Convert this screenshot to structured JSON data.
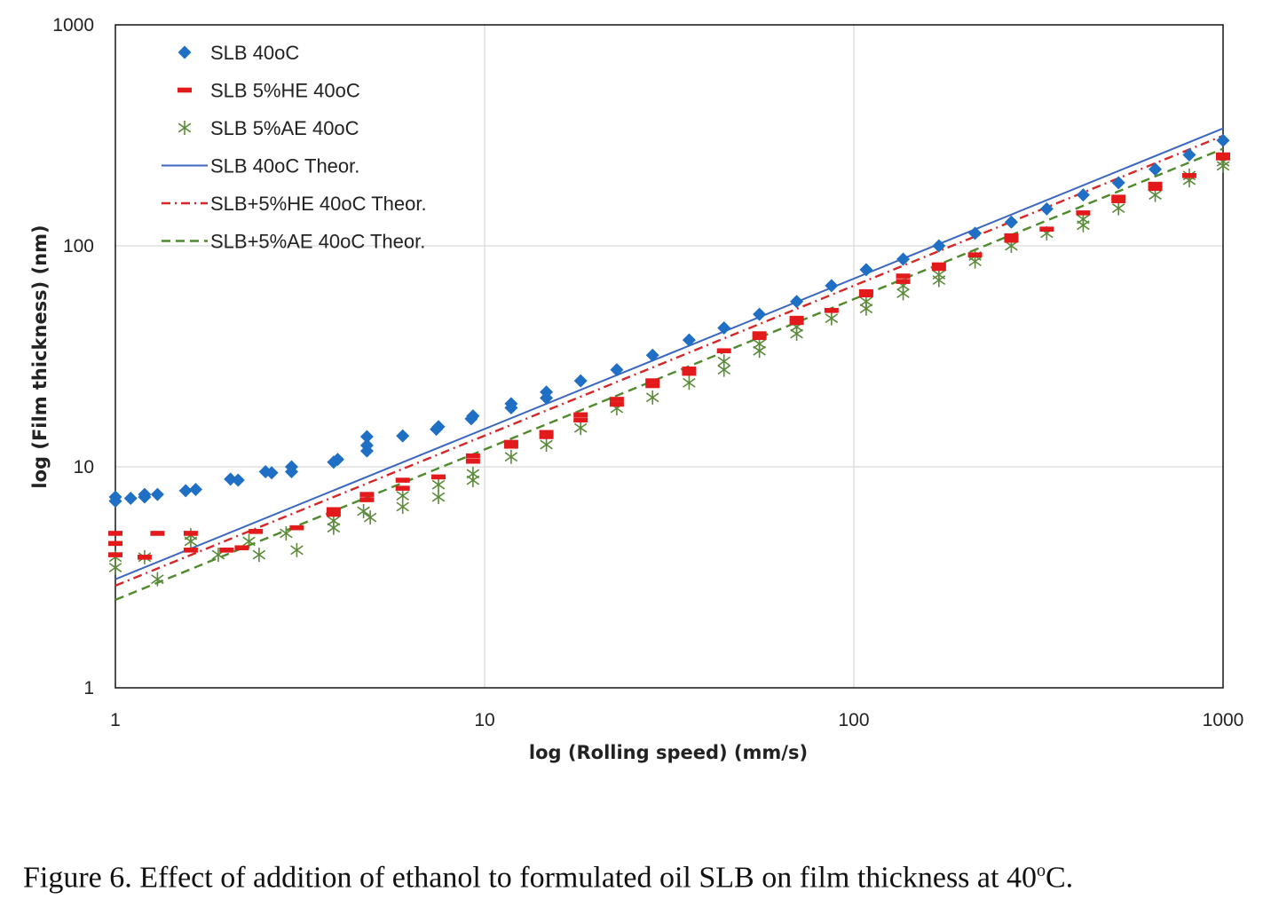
{
  "chart_data": {
    "type": "scatter",
    "xscale": "log",
    "yscale": "log",
    "xlim": [
      1,
      1000
    ],
    "ylim": [
      1,
      1000
    ],
    "xlabel": "log (Rolling speed) (mm/s)",
    "ylabel": "log (Film thickness) (nm)",
    "x_ticks": [
      "1",
      "10",
      "100",
      "1000"
    ],
    "y_ticks": [
      "1",
      "10",
      "100",
      "1000"
    ],
    "grid": true,
    "legend_placement": "top-left",
    "series": [
      {
        "name": "SLB 40oC",
        "kind": "marker",
        "marker": "diamond",
        "color": "#1f6fc5",
        "points": [
          [
            1.0,
            7.3
          ],
          [
            1.0,
            7.0
          ],
          [
            1.1,
            7.2
          ],
          [
            1.2,
            7.5
          ],
          [
            1.2,
            7.3
          ],
          [
            1.3,
            7.5
          ],
          [
            1.55,
            7.8
          ],
          [
            1.65,
            7.9
          ],
          [
            2.05,
            8.8
          ],
          [
            2.15,
            8.7
          ],
          [
            2.55,
            9.5
          ],
          [
            2.65,
            9.4
          ],
          [
            3.0,
            9.5
          ],
          [
            3.0,
            10.0
          ],
          [
            3.9,
            10.5
          ],
          [
            4.0,
            10.8
          ],
          [
            4.8,
            11.8
          ],
          [
            4.8,
            12.5
          ],
          [
            4.8,
            13.7
          ],
          [
            6.0,
            13.8
          ],
          [
            7.4,
            14.8
          ],
          [
            7.5,
            15.2
          ],
          [
            9.2,
            16.5
          ],
          [
            9.3,
            17.0
          ],
          [
            11.8,
            18.5
          ],
          [
            11.8,
            19.3
          ],
          [
            14.7,
            20.5
          ],
          [
            14.7,
            21.8
          ],
          [
            18.2,
            24.5
          ],
          [
            22.8,
            27.5
          ],
          [
            28.5,
            32.0
          ],
          [
            35.8,
            37.5
          ],
          [
            44.5,
            42.5
          ],
          [
            55.5,
            49.0
          ],
          [
            70.0,
            56.0
          ],
          [
            87.0,
            66.0
          ],
          [
            108.0,
            78.0
          ],
          [
            136.0,
            87.0
          ],
          [
            170.0,
            100.0
          ],
          [
            213.0,
            114.0
          ],
          [
            267.0,
            128.0
          ],
          [
            333.0,
            147.0
          ],
          [
            418.0,
            170.0
          ],
          [
            521.0,
            193.0
          ],
          [
            655.0,
            222.0
          ],
          [
            810.0,
            258.0
          ],
          [
            1000.0,
            300.0
          ]
        ]
      },
      {
        "name": "SLB 5%HE 40oC",
        "kind": "marker",
        "marker": "dash",
        "color": "#e31a1c",
        "points": [
          [
            1.0,
            5.0
          ],
          [
            1.0,
            4.5
          ],
          [
            1.0,
            4.0
          ],
          [
            1.2,
            3.9
          ],
          [
            1.3,
            5.0
          ],
          [
            1.6,
            5.0
          ],
          [
            1.6,
            4.2
          ],
          [
            2.0,
            4.2
          ],
          [
            2.2,
            4.3
          ],
          [
            2.4,
            5.1
          ],
          [
            3.1,
            5.3
          ],
          [
            3.9,
            6.1
          ],
          [
            3.9,
            6.4
          ],
          [
            4.8,
            7.1
          ],
          [
            4.8,
            7.5
          ],
          [
            6.0,
            8.0
          ],
          [
            6.0,
            8.7
          ],
          [
            7.5,
            9.0
          ],
          [
            9.3,
            10.6
          ],
          [
            9.3,
            11.2
          ],
          [
            11.8,
            12.4
          ],
          [
            11.8,
            12.9
          ],
          [
            14.7,
            13.7
          ],
          [
            14.7,
            14.3
          ],
          [
            18.2,
            16.3
          ],
          [
            18.2,
            17.2
          ],
          [
            22.8,
            19.2
          ],
          [
            22.8,
            20.2
          ],
          [
            28.5,
            23.3
          ],
          [
            28.5,
            24.5
          ],
          [
            35.8,
            26.5
          ],
          [
            35.8,
            27.7
          ],
          [
            44.5,
            33.5
          ],
          [
            55.5,
            38.5
          ],
          [
            55.5,
            40.0
          ],
          [
            70.0,
            45.0
          ],
          [
            70.0,
            47.0
          ],
          [
            87.0,
            51.0
          ],
          [
            108.0,
            60.0
          ],
          [
            108.0,
            62.0
          ],
          [
            136.0,
            69.0
          ],
          [
            136.0,
            73.0
          ],
          [
            170.0,
            79.0
          ],
          [
            170.0,
            82.0
          ],
          [
            213.0,
            91.0
          ],
          [
            267.0,
            106.0
          ],
          [
            267.0,
            111.0
          ],
          [
            333.0,
            119.0
          ],
          [
            418.0,
            141.0
          ],
          [
            521.0,
            160.0
          ],
          [
            521.0,
            166.0
          ],
          [
            655.0,
            182.0
          ],
          [
            655.0,
            190.0
          ],
          [
            810.0,
            208.0
          ],
          [
            1000.0,
            250.0
          ],
          [
            1000.0,
            258.0
          ]
        ]
      },
      {
        "name": "SLB 5%AE 40oC",
        "kind": "marker",
        "marker": "asterisk",
        "color": "#5b8a3a",
        "points": [
          [
            1.0,
            3.5
          ],
          [
            1.0,
            3.9
          ],
          [
            1.2,
            3.9
          ],
          [
            1.3,
            3.1
          ],
          [
            1.6,
            4.6
          ],
          [
            1.6,
            4.9
          ],
          [
            1.9,
            4.0
          ],
          [
            2.3,
            4.6
          ],
          [
            2.45,
            4.0
          ],
          [
            2.9,
            5.0
          ],
          [
            3.1,
            4.2
          ],
          [
            3.9,
            5.3
          ],
          [
            3.9,
            5.7
          ],
          [
            4.7,
            6.3
          ],
          [
            4.9,
            5.9
          ],
          [
            6.0,
            6.6
          ],
          [
            6.0,
            7.4
          ],
          [
            7.5,
            7.3
          ],
          [
            7.5,
            8.3
          ],
          [
            9.3,
            8.7
          ],
          [
            9.3,
            9.3
          ],
          [
            11.8,
            11.1
          ],
          [
            14.7,
            12.6
          ],
          [
            18.2,
            15.0
          ],
          [
            22.8,
            18.4
          ],
          [
            28.5,
            20.6
          ],
          [
            35.8,
            24.0
          ],
          [
            44.5,
            27.5
          ],
          [
            44.5,
            30.0
          ],
          [
            55.5,
            33.5
          ],
          [
            55.5,
            36.0
          ],
          [
            70.0,
            40.0
          ],
          [
            70.0,
            43.0
          ],
          [
            87.0,
            47.0
          ],
          [
            108.0,
            52.0
          ],
          [
            108.0,
            56.0
          ],
          [
            136.0,
            61.0
          ],
          [
            136.0,
            66.0
          ],
          [
            170.0,
            70.0
          ],
          [
            170.0,
            74.0
          ],
          [
            213.0,
            85.0
          ],
          [
            213.0,
            90.0
          ],
          [
            267.0,
            100.0
          ],
          [
            333.0,
            114.0
          ],
          [
            418.0,
            124.0
          ],
          [
            418.0,
            132.0
          ],
          [
            521.0,
            148.0
          ],
          [
            655.0,
            170.0
          ],
          [
            810.0,
            198.0
          ],
          [
            810.0,
            208.0
          ],
          [
            1000.0,
            230.0
          ],
          [
            1000.0,
            240.0
          ]
        ]
      },
      {
        "name": "SLB 40oC Theor.",
        "kind": "line",
        "style": "solid",
        "color": "#3c67c0",
        "points": [
          [
            1,
            3.1
          ],
          [
            1000,
            340
          ]
        ]
      },
      {
        "name": "SLB+5%HE 40oC Theor.",
        "kind": "line",
        "style": "dashdot",
        "color": "#d62728",
        "points": [
          [
            1,
            2.9
          ],
          [
            1000,
            315
          ]
        ]
      },
      {
        "name": "SLB+5%AE 40oC Theor.",
        "kind": "line",
        "style": "dashed",
        "color": "#4f8a2c",
        "points": [
          [
            1,
            2.5
          ],
          [
            1000,
            275
          ]
        ]
      }
    ]
  },
  "caption": {
    "prefix": "Figure 6. Effect of addition of ethanol to formulated oil SLB on film thickness at 40",
    "superscript": "o",
    "suffix": "C."
  }
}
